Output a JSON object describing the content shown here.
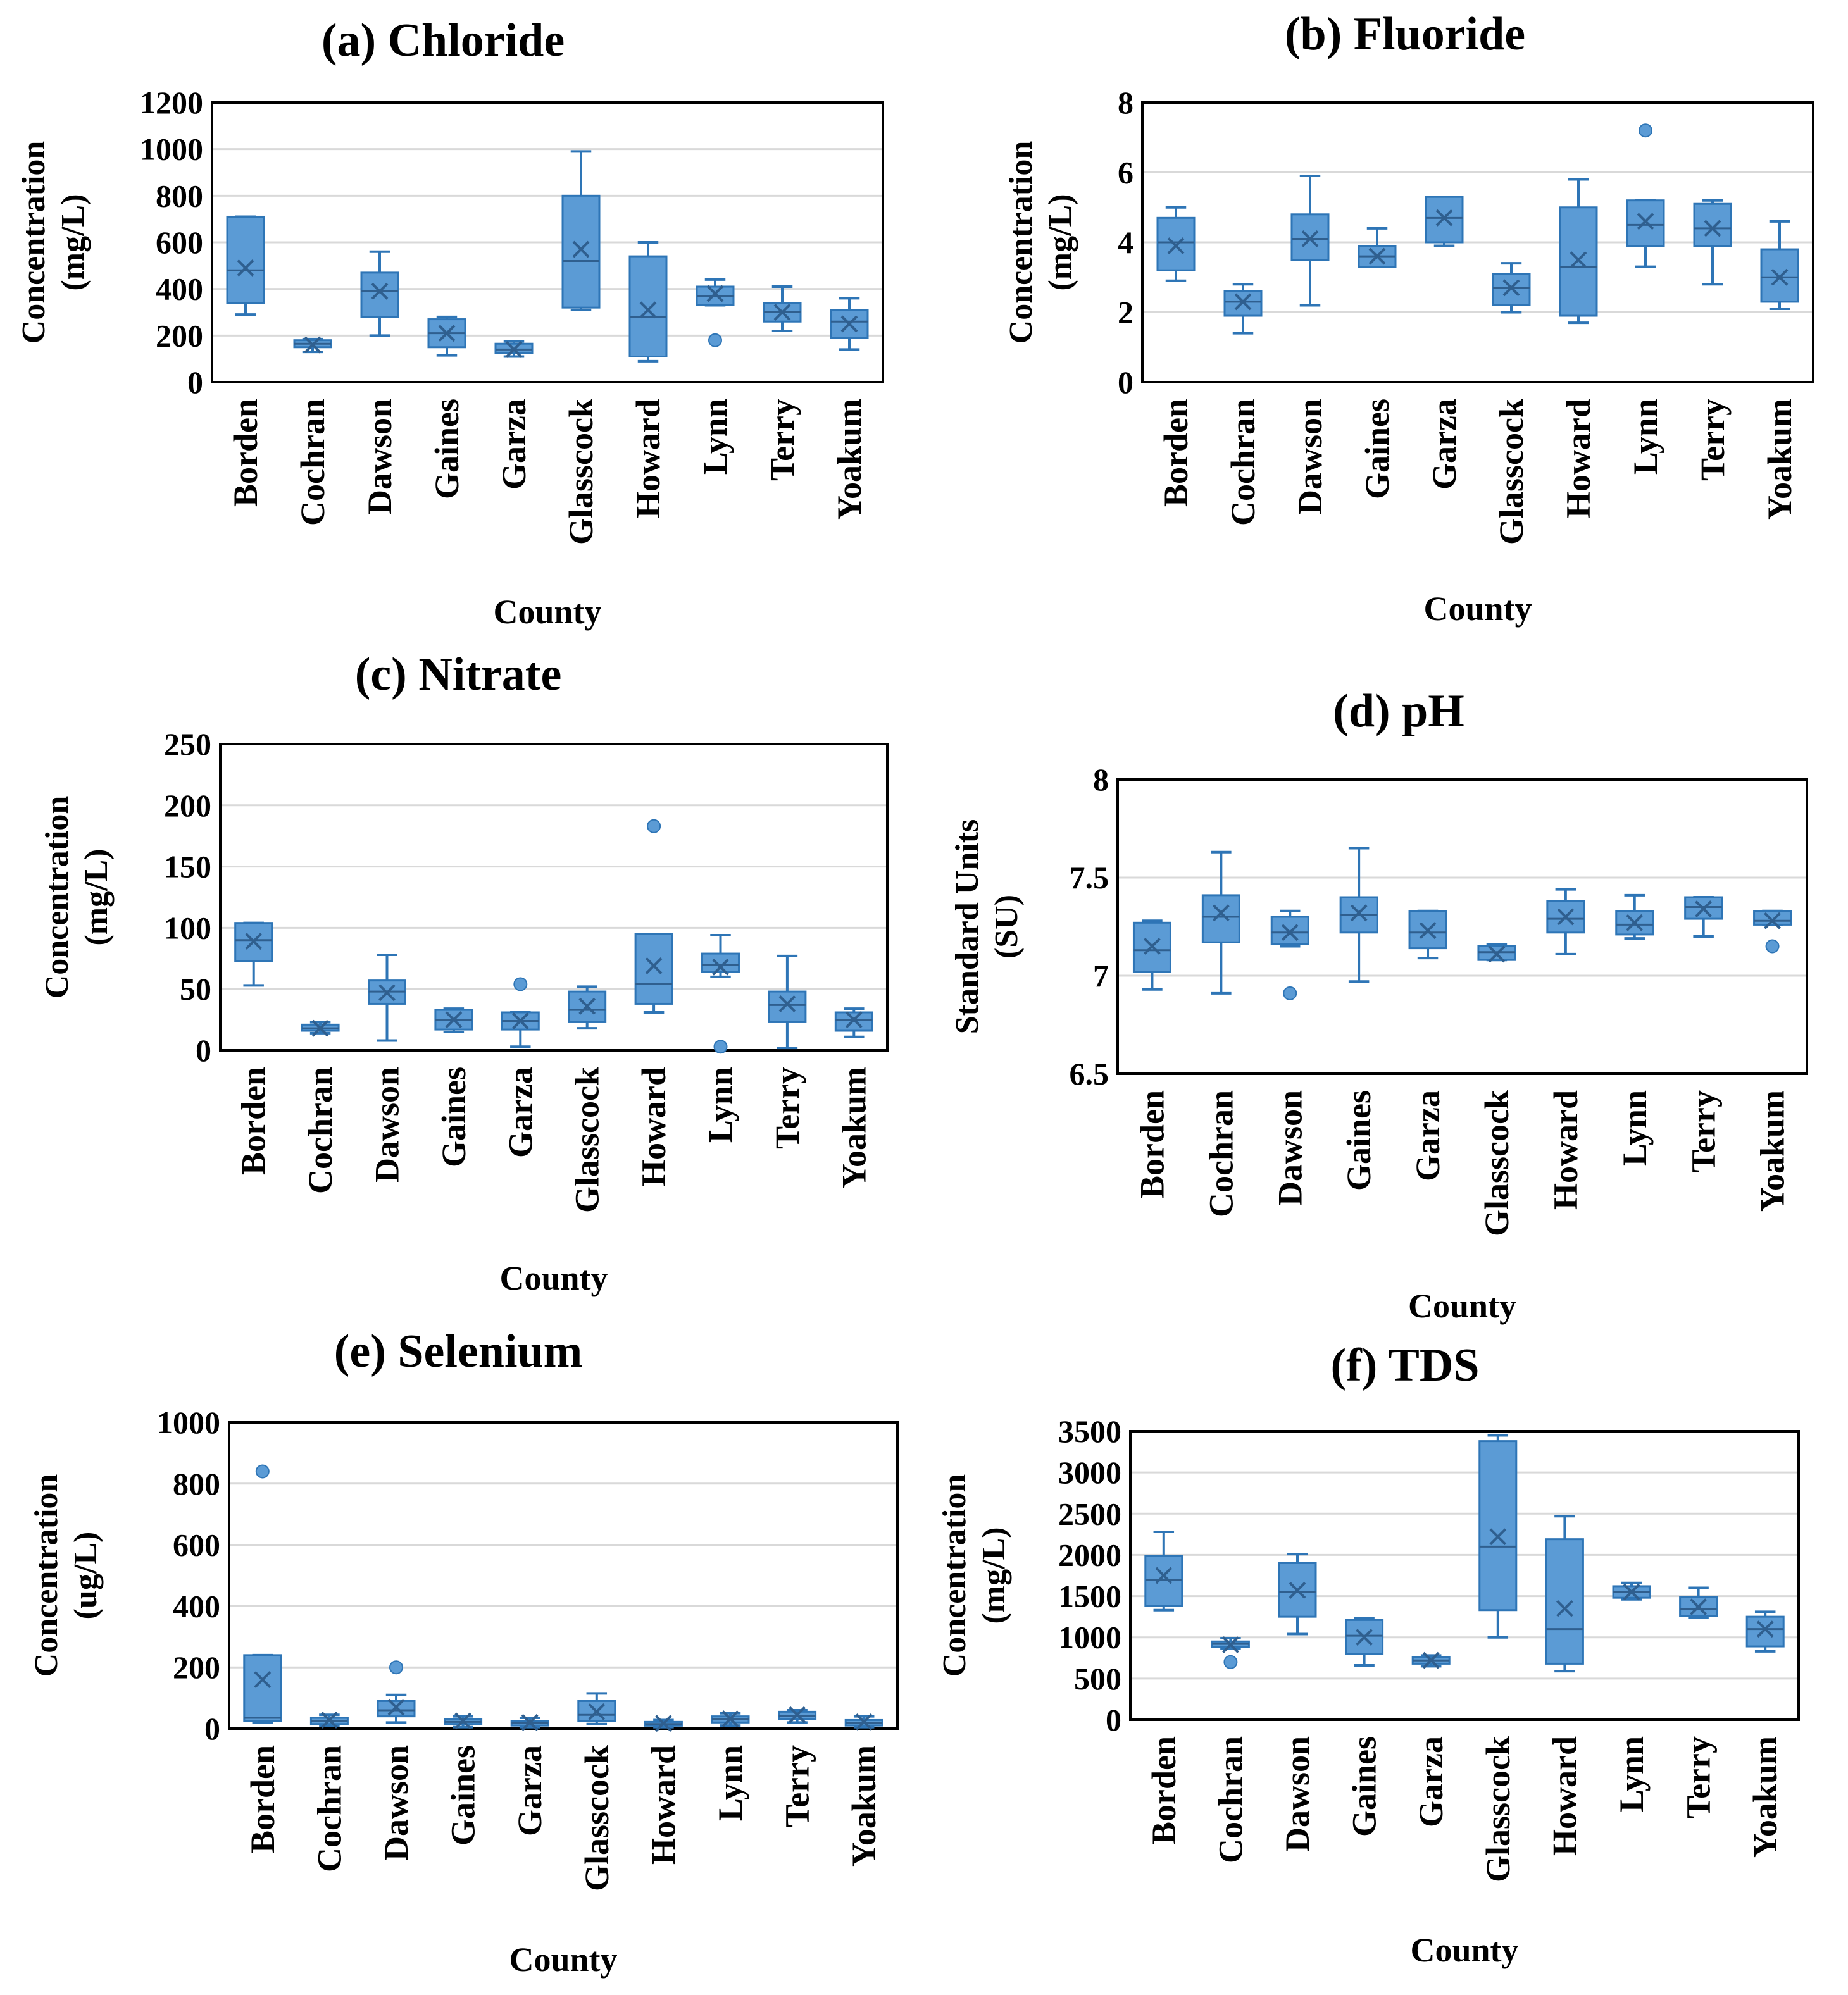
{
  "colors": {
    "box": "#5b9bd5",
    "edge": "#2e75b6",
    "grid": "#d9d9d9"
  },
  "chart_data": [
    {
      "type": "box",
      "title": "(a) Chloride",
      "ylabel": [
        "Concentration",
        "(mg/L)"
      ],
      "xlabel": "County",
      "ylim": [
        0,
        1200
      ],
      "yticks": [
        "0",
        "200",
        "400",
        "600",
        "800",
        "1000",
        "1200"
      ],
      "categories": [
        "Borden",
        "Cochran",
        "Dawson",
        "Gaines",
        "Garza",
        "Glasscock",
        "Howard",
        "Lynn",
        "Terry",
        "Yoakum"
      ],
      "boxes": [
        {
          "min": 290,
          "q1": 340,
          "median": 480,
          "q3": 710,
          "max": 710,
          "mean": 490,
          "outliers": []
        },
        {
          "min": 130,
          "q1": 150,
          "median": 165,
          "q3": 180,
          "max": 185,
          "mean": 160,
          "outliers": []
        },
        {
          "min": 200,
          "q1": 280,
          "median": 390,
          "q3": 470,
          "max": 560,
          "mean": 390,
          "outliers": []
        },
        {
          "min": 115,
          "q1": 150,
          "median": 210,
          "q3": 270,
          "max": 280,
          "mean": 210,
          "outliers": []
        },
        {
          "min": 110,
          "q1": 125,
          "median": 140,
          "q3": 165,
          "max": 175,
          "mean": 140,
          "outliers": []
        },
        {
          "min": 310,
          "q1": 320,
          "median": 520,
          "q3": 800,
          "max": 990,
          "mean": 570,
          "outliers": []
        },
        {
          "min": 90,
          "q1": 110,
          "median": 280,
          "q3": 540,
          "max": 600,
          "mean": 310,
          "outliers": []
        },
        {
          "min": 330,
          "q1": 330,
          "median": 370,
          "q3": 410,
          "max": 440,
          "mean": 380,
          "outliers": [
            180
          ]
        },
        {
          "min": 220,
          "q1": 260,
          "median": 300,
          "q3": 340,
          "max": 410,
          "mean": 300,
          "outliers": []
        },
        {
          "min": 140,
          "q1": 190,
          "median": 260,
          "q3": 310,
          "max": 360,
          "mean": 250,
          "outliers": []
        }
      ]
    },
    {
      "type": "box",
      "title": "(b) Fluoride",
      "ylabel": [
        "Concentration",
        "(mg/L)"
      ],
      "xlabel": "County",
      "ylim": [
        0,
        8
      ],
      "yticks": [
        "0",
        "2",
        "4",
        "6",
        "8"
      ],
      "categories": [
        "Borden",
        "Cochran",
        "Dawson",
        "Gaines",
        "Garza",
        "Glasscock",
        "Howard",
        "Lynn",
        "Terry",
        "Yoakum"
      ],
      "boxes": [
        {
          "min": 2.9,
          "q1": 3.2,
          "median": 4.0,
          "q3": 4.7,
          "max": 5.0,
          "mean": 3.9,
          "outliers": []
        },
        {
          "min": 1.4,
          "q1": 1.9,
          "median": 2.3,
          "q3": 2.6,
          "max": 2.8,
          "mean": 2.3,
          "outliers": []
        },
        {
          "min": 2.2,
          "q1": 3.5,
          "median": 4.1,
          "q3": 4.8,
          "max": 5.9,
          "mean": 4.1,
          "outliers": []
        },
        {
          "min": 3.3,
          "q1": 3.3,
          "median": 3.6,
          "q3": 3.9,
          "max": 4.4,
          "mean": 3.6,
          "outliers": []
        },
        {
          "min": 3.9,
          "q1": 4.0,
          "median": 4.7,
          "q3": 5.3,
          "max": 5.3,
          "mean": 4.7,
          "outliers": []
        },
        {
          "min": 2.0,
          "q1": 2.2,
          "median": 2.7,
          "q3": 3.1,
          "max": 3.4,
          "mean": 2.7,
          "outliers": []
        },
        {
          "min": 1.7,
          "q1": 1.9,
          "median": 3.3,
          "q3": 5.0,
          "max": 5.8,
          "mean": 3.5,
          "outliers": []
        },
        {
          "min": 3.3,
          "q1": 3.9,
          "median": 4.5,
          "q3": 5.2,
          "max": 5.2,
          "mean": 4.6,
          "outliers": [
            7.2
          ]
        },
        {
          "min": 2.8,
          "q1": 3.9,
          "median": 4.4,
          "q3": 5.1,
          "max": 5.2,
          "mean": 4.4,
          "outliers": []
        },
        {
          "min": 2.1,
          "q1": 2.3,
          "median": 3.0,
          "q3": 3.8,
          "max": 4.6,
          "mean": 3.0,
          "outliers": []
        }
      ]
    },
    {
      "type": "box",
      "title": "(c) Nitrate",
      "ylabel": [
        "Concentration",
        "(mg/L)"
      ],
      "xlabel": "County",
      "ylim": [
        0,
        250
      ],
      "yticks": [
        "0",
        "50",
        "100",
        "150",
        "200",
        "250"
      ],
      "categories": [
        "Borden",
        "Cochran",
        "Dawson",
        "Gaines",
        "Garza",
        "Glasscock",
        "Howard",
        "Lynn",
        "Terry",
        "Yoakum"
      ],
      "boxes": [
        {
          "min": 53,
          "q1": 73,
          "median": 90,
          "q3": 104,
          "max": 104,
          "mean": 89,
          "outliers": []
        },
        {
          "min": 14,
          "q1": 16,
          "median": 18,
          "q3": 21,
          "max": 23,
          "mean": 18,
          "outliers": []
        },
        {
          "min": 8,
          "q1": 38,
          "median": 48,
          "q3": 57,
          "max": 78,
          "mean": 47,
          "outliers": []
        },
        {
          "min": 15,
          "q1": 17,
          "median": 25,
          "q3": 33,
          "max": 34,
          "mean": 25,
          "outliers": []
        },
        {
          "min": 3,
          "q1": 17,
          "median": 24,
          "q3": 31,
          "max": 31,
          "mean": 24,
          "outliers": [
            54
          ]
        },
        {
          "min": 18,
          "q1": 23,
          "median": 33,
          "q3": 48,
          "max": 52,
          "mean": 36,
          "outliers": []
        },
        {
          "min": 31,
          "q1": 38,
          "median": 54,
          "q3": 95,
          "max": 95,
          "mean": 69,
          "outliers": [
            183
          ]
        },
        {
          "min": 60,
          "q1": 64,
          "median": 70,
          "q3": 79,
          "max": 94,
          "mean": 68,
          "outliers": [
            3
          ]
        },
        {
          "min": 2,
          "q1": 23,
          "median": 37,
          "q3": 48,
          "max": 77,
          "mean": 38,
          "outliers": []
        },
        {
          "min": 11,
          "q1": 16,
          "median": 25,
          "q3": 31,
          "max": 34,
          "mean": 25,
          "outliers": []
        }
      ]
    },
    {
      "type": "box",
      "title": "(d) pH",
      "ylabel": [
        "Standard Units",
        "(SU)"
      ],
      "xlabel": "County",
      "ylim": [
        6.5,
        8
      ],
      "yticks": [
        "6.5",
        "7",
        "7.5",
        "8"
      ],
      "categories": [
        "Borden",
        "Cochran",
        "Dawson",
        "Gaines",
        "Garza",
        "Glasscock",
        "Howard",
        "Lynn",
        "Terry",
        "Yoakum"
      ],
      "boxes": [
        {
          "min": 6.93,
          "q1": 7.02,
          "median": 7.13,
          "q3": 7.27,
          "max": 7.28,
          "mean": 7.15,
          "outliers": []
        },
        {
          "min": 6.91,
          "q1": 7.17,
          "median": 7.3,
          "q3": 7.41,
          "max": 7.63,
          "mean": 7.32,
          "outliers": []
        },
        {
          "min": 7.15,
          "q1": 7.16,
          "median": 7.22,
          "q3": 7.3,
          "max": 7.33,
          "mean": 7.22,
          "outliers": [
            6.91
          ]
        },
        {
          "min": 6.97,
          "q1": 7.22,
          "median": 7.31,
          "q3": 7.4,
          "max": 7.65,
          "mean": 7.32,
          "outliers": []
        },
        {
          "min": 7.09,
          "q1": 7.14,
          "median": 7.22,
          "q3": 7.33,
          "max": 7.33,
          "mean": 7.23,
          "outliers": []
        },
        {
          "min": 7.08,
          "q1": 7.08,
          "median": 7.12,
          "q3": 7.15,
          "max": 7.16,
          "mean": 7.11,
          "outliers": []
        },
        {
          "min": 7.11,
          "q1": 7.22,
          "median": 7.29,
          "q3": 7.38,
          "max": 7.44,
          "mean": 7.3,
          "outliers": []
        },
        {
          "min": 7.19,
          "q1": 7.21,
          "median": 7.26,
          "q3": 7.33,
          "max": 7.41,
          "mean": 7.27,
          "outliers": []
        },
        {
          "min": 7.2,
          "q1": 7.29,
          "median": 7.35,
          "q3": 7.4,
          "max": 7.4,
          "mean": 7.34,
          "outliers": []
        },
        {
          "min": 7.26,
          "q1": 7.26,
          "median": 7.28,
          "q3": 7.33,
          "max": 7.33,
          "mean": 7.28,
          "outliers": [
            7.15
          ]
        }
      ]
    },
    {
      "type": "box",
      "title": "(e) Selenium",
      "ylabel": [
        "Concentration",
        "(ug/L)"
      ],
      "xlabel": "County",
      "ylim": [
        0,
        1000
      ],
      "yticks": [
        "0",
        "200",
        "400",
        "600",
        "800",
        "1000"
      ],
      "categories": [
        "Borden",
        "Cochran",
        "Dawson",
        "Gaines",
        "Garza",
        "Glasscock",
        "Howard",
        "Lynn",
        "Terry",
        "Yoakum"
      ],
      "boxes": [
        {
          "min": 20,
          "q1": 25,
          "median": 35,
          "q3": 240,
          "max": 240,
          "mean": 160,
          "outliers": [
            840
          ]
        },
        {
          "min": 10,
          "q1": 15,
          "median": 25,
          "q3": 35,
          "max": 45,
          "mean": 28,
          "outliers": []
        },
        {
          "min": 20,
          "q1": 40,
          "median": 60,
          "q3": 90,
          "max": 110,
          "mean": 70,
          "outliers": [
            200
          ]
        },
        {
          "min": 5,
          "q1": 15,
          "median": 22,
          "q3": 30,
          "max": 40,
          "mean": 25,
          "outliers": []
        },
        {
          "min": 5,
          "q1": 10,
          "median": 18,
          "q3": 25,
          "max": 35,
          "mean": 20,
          "outliers": []
        },
        {
          "min": 15,
          "q1": 25,
          "median": 45,
          "q3": 90,
          "max": 115,
          "mean": 55,
          "outliers": []
        },
        {
          "min": 5,
          "q1": 10,
          "median": 15,
          "q3": 22,
          "max": 28,
          "mean": 17,
          "outliers": []
        },
        {
          "min": 10,
          "q1": 20,
          "median": 30,
          "q3": 40,
          "max": 50,
          "mean": 32,
          "outliers": []
        },
        {
          "min": 20,
          "q1": 30,
          "median": 42,
          "q3": 55,
          "max": 60,
          "mean": 45,
          "outliers": []
        },
        {
          "min": 5,
          "q1": 10,
          "median": 18,
          "q3": 28,
          "max": 40,
          "mean": 22,
          "outliers": []
        }
      ]
    },
    {
      "type": "box",
      "title": "(f) TDS",
      "ylabel": [
        "Concentration",
        "(mg/L)"
      ],
      "xlabel": "County",
      "ylim": [
        0,
        3500
      ],
      "yticks": [
        "0",
        "500",
        "1000",
        "1500",
        "2000",
        "2500",
        "3000",
        "3500"
      ],
      "categories": [
        "Borden",
        "Cochran",
        "Dawson",
        "Gaines",
        "Garza",
        "Glasscock",
        "Howard",
        "Lynn",
        "Terry",
        "Yoakum"
      ],
      "boxes": [
        {
          "min": 1330,
          "q1": 1380,
          "median": 1700,
          "q3": 1990,
          "max": 2280,
          "mean": 1750,
          "outliers": []
        },
        {
          "min": 860,
          "q1": 880,
          "median": 920,
          "q3": 950,
          "max": 990,
          "mean": 910,
          "outliers": [
            700
          ]
        },
        {
          "min": 1040,
          "q1": 1250,
          "median": 1550,
          "q3": 1900,
          "max": 2010,
          "mean": 1570,
          "outliers": []
        },
        {
          "min": 660,
          "q1": 800,
          "median": 1020,
          "q3": 1210,
          "max": 1230,
          "mean": 1000,
          "outliers": []
        },
        {
          "min": 650,
          "q1": 680,
          "median": 720,
          "q3": 760,
          "max": 780,
          "mean": 720,
          "outliers": []
        },
        {
          "min": 1000,
          "q1": 1330,
          "median": 2100,
          "q3": 3380,
          "max": 3450,
          "mean": 2220,
          "outliers": []
        },
        {
          "min": 590,
          "q1": 680,
          "median": 1100,
          "q3": 2190,
          "max": 2470,
          "mean": 1350,
          "outliers": []
        },
        {
          "min": 1460,
          "q1": 1480,
          "median": 1550,
          "q3": 1620,
          "max": 1660,
          "mean": 1550,
          "outliers": []
        },
        {
          "min": 1240,
          "q1": 1260,
          "median": 1340,
          "q3": 1490,
          "max": 1600,
          "mean": 1370,
          "outliers": []
        },
        {
          "min": 830,
          "q1": 890,
          "median": 1100,
          "q3": 1250,
          "max": 1310,
          "mean": 1100,
          "outliers": []
        }
      ]
    }
  ]
}
